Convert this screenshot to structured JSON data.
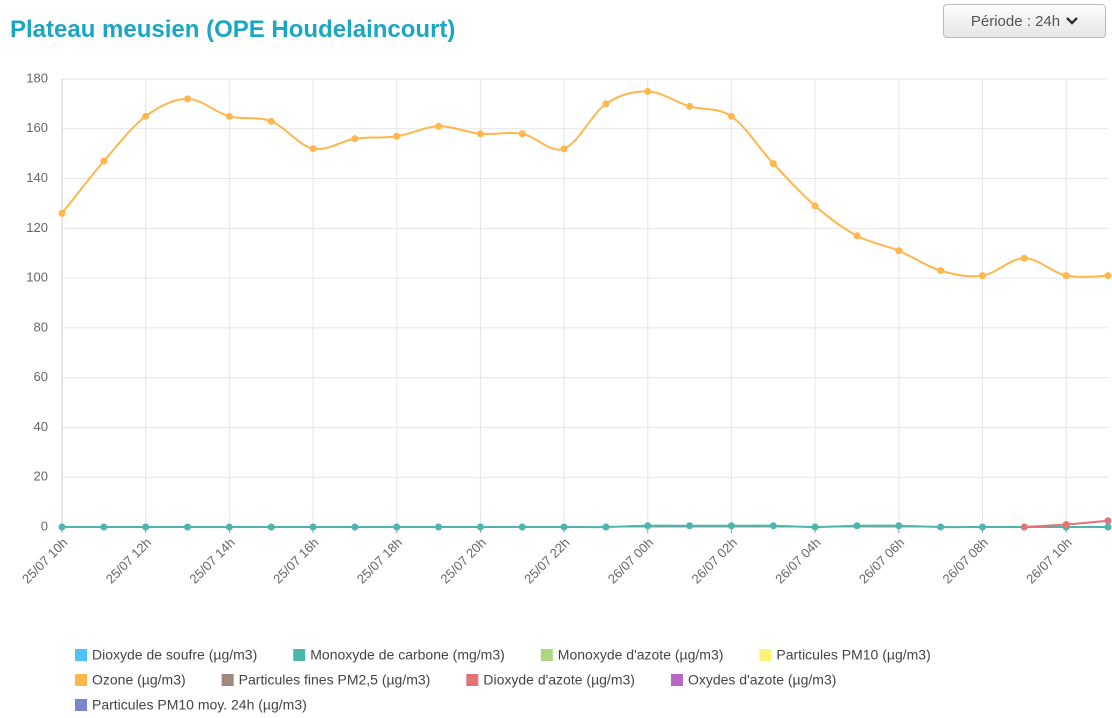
{
  "period_button": "Période : 24h",
  "chart_data": {
    "type": "line",
    "title": "Plateau meusien (OPE Houdelaincourt)",
    "categories": [
      "25/07 10h",
      null,
      "25/07 12h",
      null,
      "25/07 14h",
      null,
      "25/07 16h",
      null,
      "25/07 18h",
      null,
      "25/07 20h",
      null,
      "25/07 22h",
      null,
      "26/07 00h",
      null,
      "26/07 02h",
      null,
      "26/07 04h",
      null,
      "26/07 06h",
      null,
      "26/07 08h",
      null,
      "26/07 10h",
      null
    ],
    "ylim": [
      0,
      180
    ],
    "yticks": [
      0,
      20,
      40,
      60,
      80,
      100,
      120,
      140,
      160,
      180
    ],
    "grid": true,
    "smooth": true,
    "series": [
      {
        "name": "Dioxyde de soufre (µg/m3)",
        "color": "#4fc3f7",
        "values": [
          null,
          null,
          null,
          null,
          null,
          null,
          null,
          null,
          null,
          null,
          null,
          null,
          null,
          null,
          null,
          null,
          null,
          null,
          null,
          null,
          null,
          null,
          null,
          null,
          null,
          null
        ]
      },
      {
        "name": "Monoxyde de carbone (mg/m3)",
        "color": "#4db6ac",
        "values": [
          0,
          0,
          0,
          0,
          0,
          0,
          0,
          0,
          0,
          0,
          0,
          0,
          0,
          0,
          0.5,
          0.5,
          0.5,
          0.5,
          0,
          0.5,
          0.5,
          0,
          0,
          0,
          0,
          0
        ]
      },
      {
        "name": "Monoxyde d'azote (µg/m3)",
        "color": "#aed581",
        "values": [
          null,
          null,
          null,
          null,
          null,
          null,
          null,
          null,
          null,
          null,
          null,
          null,
          null,
          null,
          null,
          null,
          null,
          null,
          null,
          null,
          null,
          null,
          null,
          null,
          null,
          null
        ]
      },
      {
        "name": "Particules PM10 (µg/m3)",
        "color": "#fff176",
        "values": [
          null,
          null,
          null,
          null,
          null,
          null,
          null,
          null,
          null,
          null,
          null,
          null,
          null,
          null,
          null,
          null,
          null,
          null,
          null,
          null,
          null,
          null,
          null,
          null,
          null,
          null
        ]
      },
      {
        "name": "Ozone (µg/m3)",
        "color": "#ffb74d",
        "values": [
          126,
          147,
          165,
          172,
          165,
          163,
          152,
          156,
          157,
          161,
          158,
          158,
          152,
          170,
          175,
          169,
          165,
          146,
          129,
          117,
          111,
          103,
          101,
          108,
          101,
          101
        ]
      },
      {
        "name": "Particules fines PM2,5 (µg/m3)",
        "color": "#a1887f",
        "values": [
          null,
          null,
          null,
          null,
          null,
          null,
          null,
          null,
          null,
          null,
          null,
          null,
          null,
          null,
          null,
          null,
          null,
          null,
          null,
          null,
          null,
          null,
          null,
          null,
          null,
          null
        ]
      },
      {
        "name": "Dioxyde d'azote (µg/m3)",
        "color": "#e57373",
        "values": [
          null,
          null,
          null,
          null,
          null,
          null,
          null,
          null,
          null,
          null,
          null,
          null,
          null,
          null,
          null,
          null,
          null,
          null,
          null,
          null,
          null,
          null,
          null,
          0,
          1,
          2.5
        ]
      },
      {
        "name": "Oxydes d'azote (µg/m3)",
        "color": "#ba68c8",
        "values": [
          null,
          null,
          null,
          null,
          null,
          null,
          null,
          null,
          null,
          null,
          null,
          null,
          null,
          null,
          null,
          null,
          null,
          null,
          null,
          null,
          null,
          null,
          null,
          null,
          null,
          null
        ]
      },
      {
        "name": "Particules PM10 moy. 24h (µg/m3)",
        "color": "#7986cb",
        "values": [
          null,
          null,
          null,
          null,
          null,
          null,
          null,
          null,
          null,
          null,
          null,
          null,
          null,
          null,
          null,
          null,
          null,
          null,
          null,
          null,
          null,
          null,
          null,
          null,
          null,
          null
        ]
      }
    ]
  }
}
